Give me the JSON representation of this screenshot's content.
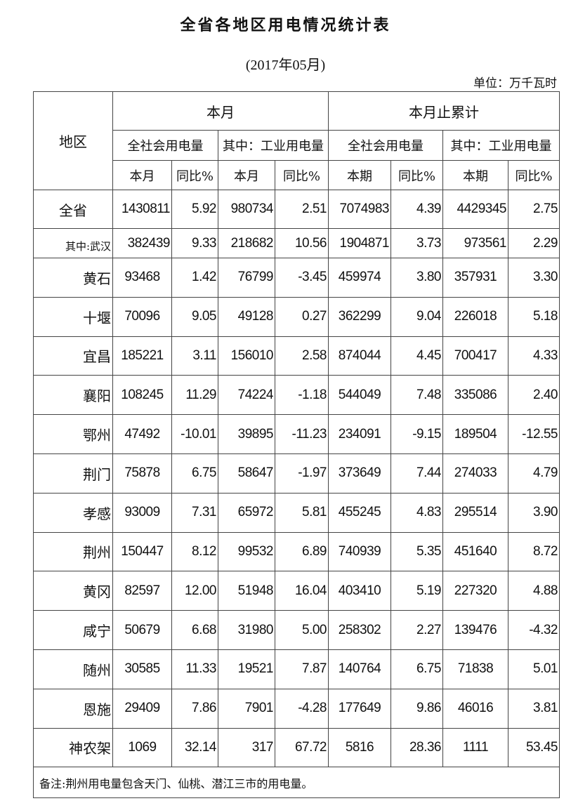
{
  "title": "全省各地区用电情况统计表",
  "subtitle": "(2017年05月)",
  "unit": "单位：万千瓦时",
  "header": {
    "region": "地区",
    "group_month": "本月",
    "group_cumulative": "本月止累计",
    "sub_total": "全社会用电量",
    "sub_industry": "其中：工业用电量",
    "col_month": "本月",
    "col_period": "本期",
    "col_yoy": "同比%"
  },
  "rows": [
    {
      "region": "全省",
      "v": [
        "1430811",
        "5.92",
        "980734",
        "2.51",
        "7074983",
        "4.39",
        "4429345",
        "2.75"
      ]
    },
    {
      "region": "其中:武汉",
      "v": [
        "382439",
        "9.33",
        "218682",
        "10.56",
        "1904871",
        "3.73",
        "973561",
        "2.29"
      ]
    },
    {
      "region": "黄石",
      "v": [
        "93468",
        "1.42",
        "76799",
        "-3.45",
        "459974",
        "3.80",
        "357931",
        "3.30"
      ]
    },
    {
      "region": "十堰",
      "v": [
        "70096",
        "9.05",
        "49128",
        "0.27",
        "362299",
        "9.04",
        "226018",
        "5.18"
      ]
    },
    {
      "region": "宜昌",
      "v": [
        "185221",
        "3.11",
        "156010",
        "2.58",
        "874044",
        "4.45",
        "700417",
        "4.33"
      ]
    },
    {
      "region": "襄阳",
      "v": [
        "108245",
        "11.29",
        "74224",
        "-1.18",
        "544049",
        "7.48",
        "335086",
        "2.40"
      ]
    },
    {
      "region": "鄂州",
      "v": [
        "47492",
        "-10.01",
        "39895",
        "-11.23",
        "234091",
        "-9.15",
        "189504",
        "-12.55"
      ]
    },
    {
      "region": "荆门",
      "v": [
        "75878",
        "6.75",
        "58647",
        "-1.97",
        "373649",
        "7.44",
        "274033",
        "4.79"
      ]
    },
    {
      "region": "孝感",
      "v": [
        "93009",
        "7.31",
        "65972",
        "5.81",
        "455245",
        "4.83",
        "295514",
        "3.90"
      ]
    },
    {
      "region": "荆州",
      "v": [
        "150447",
        "8.12",
        "99532",
        "6.89",
        "740939",
        "5.35",
        "451640",
        "8.72"
      ]
    },
    {
      "region": "黄冈",
      "v": [
        "82597",
        "12.00",
        "51948",
        "16.04",
        "403410",
        "5.19",
        "227320",
        "4.88"
      ]
    },
    {
      "region": "咸宁",
      "v": [
        "50679",
        "6.68",
        "31980",
        "5.00",
        "258302",
        "2.27",
        "139476",
        "-4.32"
      ]
    },
    {
      "region": "随州",
      "v": [
        "30585",
        "11.33",
        "19521",
        "7.87",
        "140764",
        "6.75",
        "71838",
        "5.01"
      ]
    },
    {
      "region": "恩施",
      "v": [
        "29409",
        "7.86",
        "7901",
        "-4.28",
        "177649",
        "9.86",
        "46016",
        "3.81"
      ]
    },
    {
      "region": "神农架",
      "v": [
        "1069",
        "32.14",
        "317",
        "67.72",
        "5816",
        "28.36",
        "1111",
        "53.45"
      ]
    }
  ],
  "note": "备注:荆州用电量包含天门、仙桃、潜江三市的用电量。"
}
